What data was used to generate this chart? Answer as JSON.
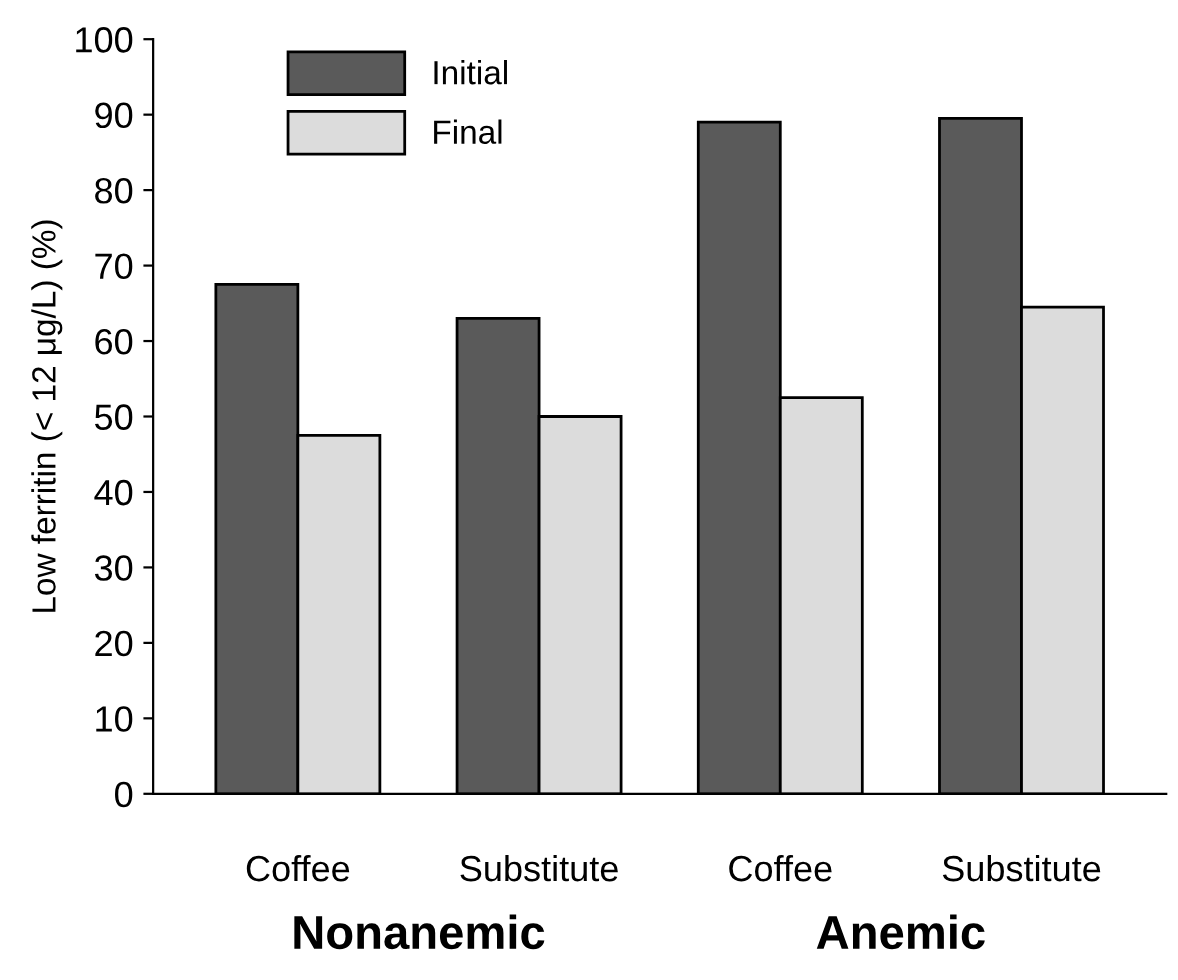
{
  "chart_data": {
    "type": "bar",
    "ylabel": "Low ferritin (< 12 μg/L) (%)",
    "categories": [
      "Coffee",
      "Substitute",
      "Coffee",
      "Substitute"
    ],
    "series": [
      {
        "name": "Initial",
        "color": "#5a5a5a",
        "values": [
          67.5,
          63,
          89,
          89.5
        ]
      },
      {
        "name": "Final",
        "color": "#dcdcdc",
        "values": [
          47.5,
          50,
          52.5,
          64.5
        ]
      }
    ],
    "ylim": [
      0,
      100
    ],
    "yticks": [
      0,
      10,
      20,
      30,
      40,
      50,
      60,
      70,
      80,
      90,
      100
    ],
    "grid": false,
    "legend": "top left",
    "annotations": [
      "Nonanemic",
      "Anemic"
    ]
  }
}
